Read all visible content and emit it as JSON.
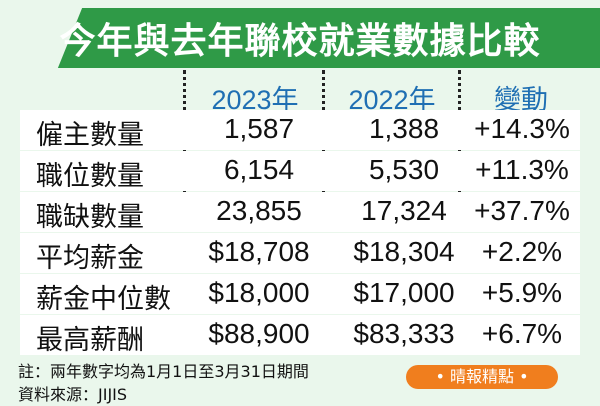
{
  "title": "今年與去年聯校就業數據比較",
  "table": {
    "headers": [
      "2023年",
      "2022年",
      "變動"
    ],
    "rows": [
      {
        "label": "僱主數量",
        "v2023": "1,587",
        "v2022": "1,388",
        "change": "+14.3%"
      },
      {
        "label": "職位數量",
        "v2023": "6,154",
        "v2022": "5,530",
        "change": "+11.3%"
      },
      {
        "label": "職缺數量",
        "v2023": "23,855",
        "v2022": "17,324",
        "change": "+37.7%"
      },
      {
        "label": "平均薪金",
        "v2023": "$18,708",
        "v2022": "$18,304",
        "change": "+2.2%"
      },
      {
        "label": "薪金中位數",
        "v2023": "$18,000",
        "v2022": "$17,000",
        "change": "+5.9%"
      },
      {
        "label": "最高薪酬",
        "v2023": "$88,900",
        "v2022": "$83,333",
        "change": "+6.7%"
      }
    ]
  },
  "notes": {
    "note1": "註：兩年數字均為1月1日至3月31日期間",
    "source": "資料來源：JIJIS"
  },
  "badge": "• 晴報精點 •",
  "colors": {
    "background": "#eaf7ec",
    "title_band": "#2f9a47",
    "header_text": "#1f6fb3",
    "badge": "#f07e1e"
  }
}
